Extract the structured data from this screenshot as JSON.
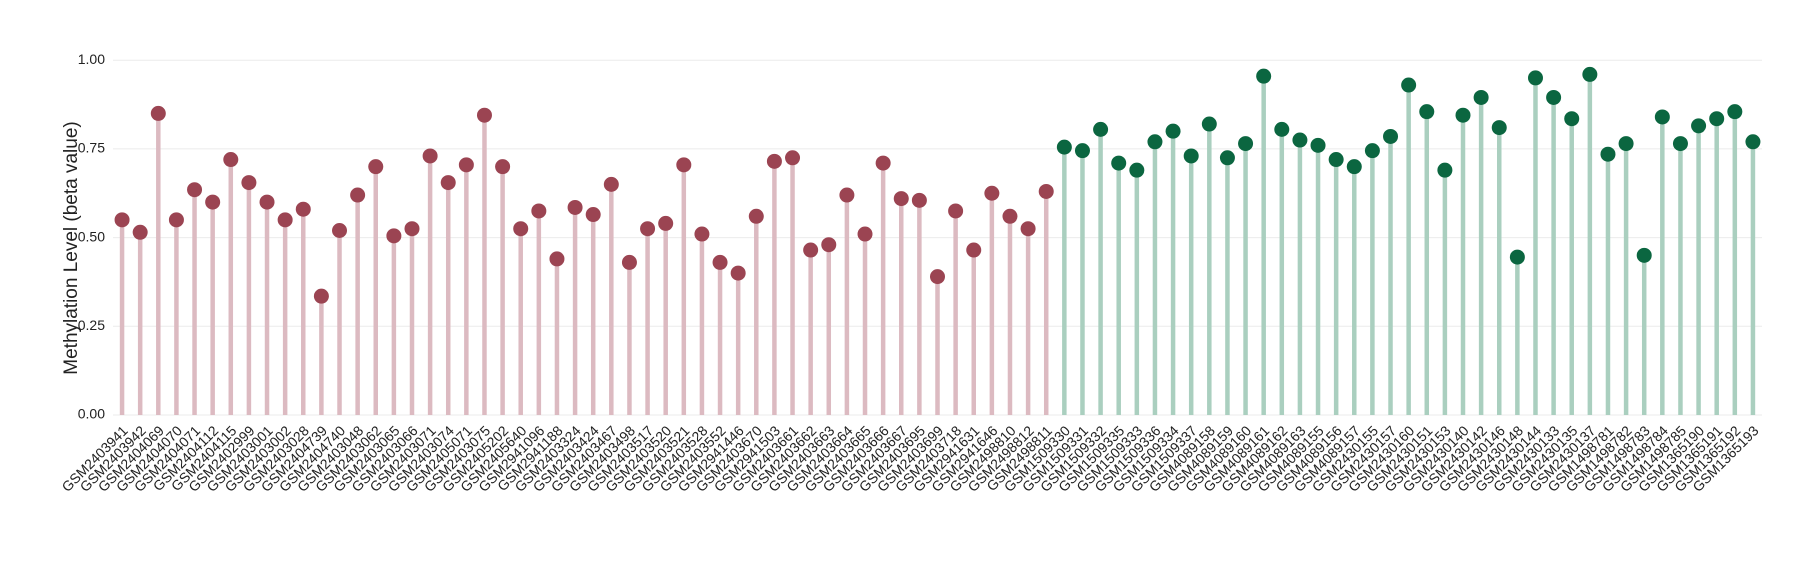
{
  "chart_data": {
    "type": "lollipop",
    "y_label": "Methylation Level (beta value)",
    "categories": [
      "GSM2403941",
      "GSM2403942",
      "GSM2404069",
      "GSM2404070",
      "GSM2404071",
      "GSM2404112",
      "GSM2404115",
      "GSM2402999",
      "GSM2403001",
      "GSM2403002",
      "GSM2403028",
      "GSM2404739",
      "GSM2404740",
      "GSM2403048",
      "GSM2403062",
      "GSM2403065",
      "GSM2403066",
      "GSM2403071",
      "GSM2403074",
      "GSM2405071",
      "GSM2403075",
      "GSM2405202",
      "GSM2405640",
      "GSM2941096",
      "GSM2941188",
      "GSM2403324",
      "GSM2403424",
      "GSM2403467",
      "GSM2403498",
      "GSM2403517",
      "GSM2403520",
      "GSM2403521",
      "GSM2403528",
      "GSM2403552",
      "GSM2941446",
      "GSM2403670",
      "GSM2941503",
      "GSM2403661",
      "GSM2403662",
      "GSM2403663",
      "GSM2403664",
      "GSM2403665",
      "GSM2403666",
      "GSM2403667",
      "GSM2403695",
      "GSM2403699",
      "GSM2403718",
      "GSM2941631",
      "GSM2941646",
      "GSM2498810",
      "GSM2498812",
      "GSM2498811",
      "GSM1509330",
      "GSM1509331",
      "GSM1509332",
      "GSM1509335",
      "GSM1509333",
      "GSM1509336",
      "GSM1509334",
      "GSM1509337",
      "GSM4089158",
      "GSM4089159",
      "GSM4089160",
      "GSM4089161",
      "GSM4089162",
      "GSM4089163",
      "GSM4089155",
      "GSM4089156",
      "GSM4089157",
      "GSM2430155",
      "GSM2430157",
      "GSM2430160",
      "GSM2430151",
      "GSM2430153",
      "GSM2430140",
      "GSM2430142",
      "GSM2430146",
      "GSM2430148",
      "GSM2430144",
      "GSM2430133",
      "GSM2430135",
      "GSM2430137",
      "GSM1498781",
      "GSM1498782",
      "GSM1498783",
      "GSM1498784",
      "GSM1498785",
      "GSM1365190",
      "GSM1365191",
      "GSM1365192",
      "GSM1365193"
    ],
    "series": [
      {
        "color": "#9b4452",
        "stem_color": "#dcbac1",
        "values": [
          0.55,
          0.515,
          0.85,
          0.55,
          0.635,
          0.6,
          0.72,
          0.655,
          0.6,
          0.55,
          0.58,
          0.335,
          0.52,
          0.62,
          0.7,
          0.505,
          0.525,
          0.73,
          0.655,
          0.705,
          0.845,
          0.7,
          0.525,
          0.575,
          0.44,
          0.585,
          0.565,
          0.65,
          0.43,
          0.525,
          0.54,
          0.705,
          0.51,
          0.43,
          0.4,
          0.56,
          0.715,
          0.725,
          0.465,
          0.48,
          0.62,
          0.51,
          0.71,
          0.61,
          0.605,
          0.39,
          0.575,
          0.465,
          0.625,
          0.56,
          0.525,
          0.63,
          null,
          null,
          null,
          null,
          null,
          null,
          null,
          null,
          null,
          null,
          null,
          null,
          null,
          null,
          null,
          null,
          null,
          null,
          null,
          null,
          null,
          null,
          null,
          null,
          null,
          null,
          null,
          null,
          null,
          null,
          null,
          null,
          null,
          null,
          null,
          null,
          null,
          null,
          null
        ]
      },
      {
        "color": "#0b6640",
        "stem_color": "#aacfbf",
        "values": [
          null,
          null,
          null,
          null,
          null,
          null,
          null,
          null,
          null,
          null,
          null,
          null,
          null,
          null,
          null,
          null,
          null,
          null,
          null,
          null,
          null,
          null,
          null,
          null,
          null,
          null,
          null,
          null,
          null,
          null,
          null,
          null,
          null,
          null,
          null,
          null,
          null,
          null,
          null,
          null,
          null,
          null,
          null,
          null,
          null,
          null,
          null,
          null,
          null,
          null,
          null,
          null,
          0.755,
          0.745,
          0.805,
          0.71,
          0.69,
          0.77,
          0.8,
          0.73,
          0.82,
          0.725,
          0.765,
          0.955,
          0.805,
          0.775,
          0.76,
          0.72,
          0.7,
          0.745,
          0.785,
          0.93,
          0.855,
          0.69,
          0.845,
          0.895,
          0.81,
          0.445,
          0.95,
          0.895,
          0.835,
          0.96,
          0.735,
          0.765,
          0.45,
          0.84,
          0.765,
          0.815,
          0.835,
          0.855,
          0.77
        ]
      }
    ],
    "ylim": [
      0,
      1.04
    ],
    "yticks": [
      {
        "value": 0,
        "label": "0.00"
      },
      {
        "value": 0.25,
        "label": "0.25"
      },
      {
        "value": 0.5,
        "label": "0.50"
      },
      {
        "value": 0.75,
        "label": "0.75"
      },
      {
        "value": 1,
        "label": "1.00"
      }
    ],
    "grid": true
  }
}
